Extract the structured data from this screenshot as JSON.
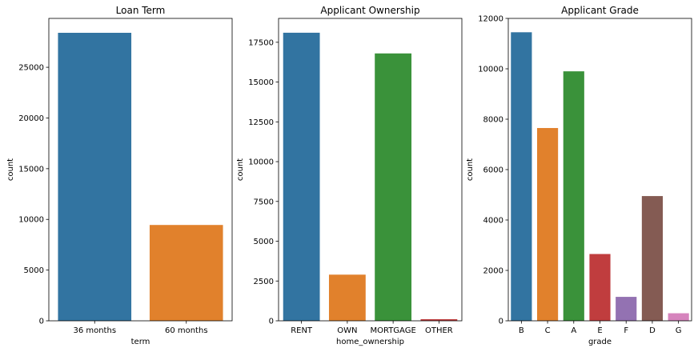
{
  "chart_data": [
    {
      "type": "bar",
      "title": "Loan Term",
      "xlabel": "term",
      "ylabel": "count",
      "categories": [
        "36 months",
        "60 months"
      ],
      "values": [
        28400,
        9450
      ],
      "ylim": [
        0,
        29820
      ],
      "yticks": [
        0,
        5000,
        10000,
        15000,
        20000,
        25000
      ],
      "ytick_labels": [
        "0",
        "5000",
        "10000",
        "15000",
        "20000",
        "25000"
      ],
      "colors": [
        "#3274a1",
        "#e1812c"
      ],
      "grid": false
    },
    {
      "type": "bar",
      "title": "Applicant Ownership",
      "xlabel": "home_ownership",
      "ylabel": "count",
      "categories": [
        "RENT",
        "OWN",
        "MORTGAGE",
        "OTHER"
      ],
      "values": [
        18100,
        2900,
        16800,
        100
      ],
      "ylim": [
        0,
        19000
      ],
      "yticks": [
        0,
        2500,
        5000,
        7500,
        10000,
        12500,
        15000,
        17500
      ],
      "ytick_labels": [
        "0",
        "2500",
        "5000",
        "7500",
        "10000",
        "12500",
        "15000",
        "17500"
      ],
      "colors": [
        "#3274a1",
        "#e1812c",
        "#3a923a",
        "#c03d3e"
      ],
      "grid": false
    },
    {
      "type": "bar",
      "title": "Applicant Grade",
      "xlabel": "grade",
      "ylabel": "count",
      "categories": [
        "B",
        "C",
        "A",
        "E",
        "F",
        "D",
        "G"
      ],
      "values": [
        11450,
        7650,
        9900,
        2650,
        950,
        4950,
        300
      ],
      "ylim": [
        0,
        12000
      ],
      "yticks": [
        0,
        2000,
        4000,
        6000,
        8000,
        10000,
        12000
      ],
      "ytick_labels": [
        "0",
        "2000",
        "4000",
        "6000",
        "8000",
        "10000",
        "12000"
      ],
      "colors": [
        "#3274a1",
        "#e1812c",
        "#3a923a",
        "#c03d3e",
        "#9372b2",
        "#845b53",
        "#d684bd"
      ],
      "grid": false
    }
  ]
}
